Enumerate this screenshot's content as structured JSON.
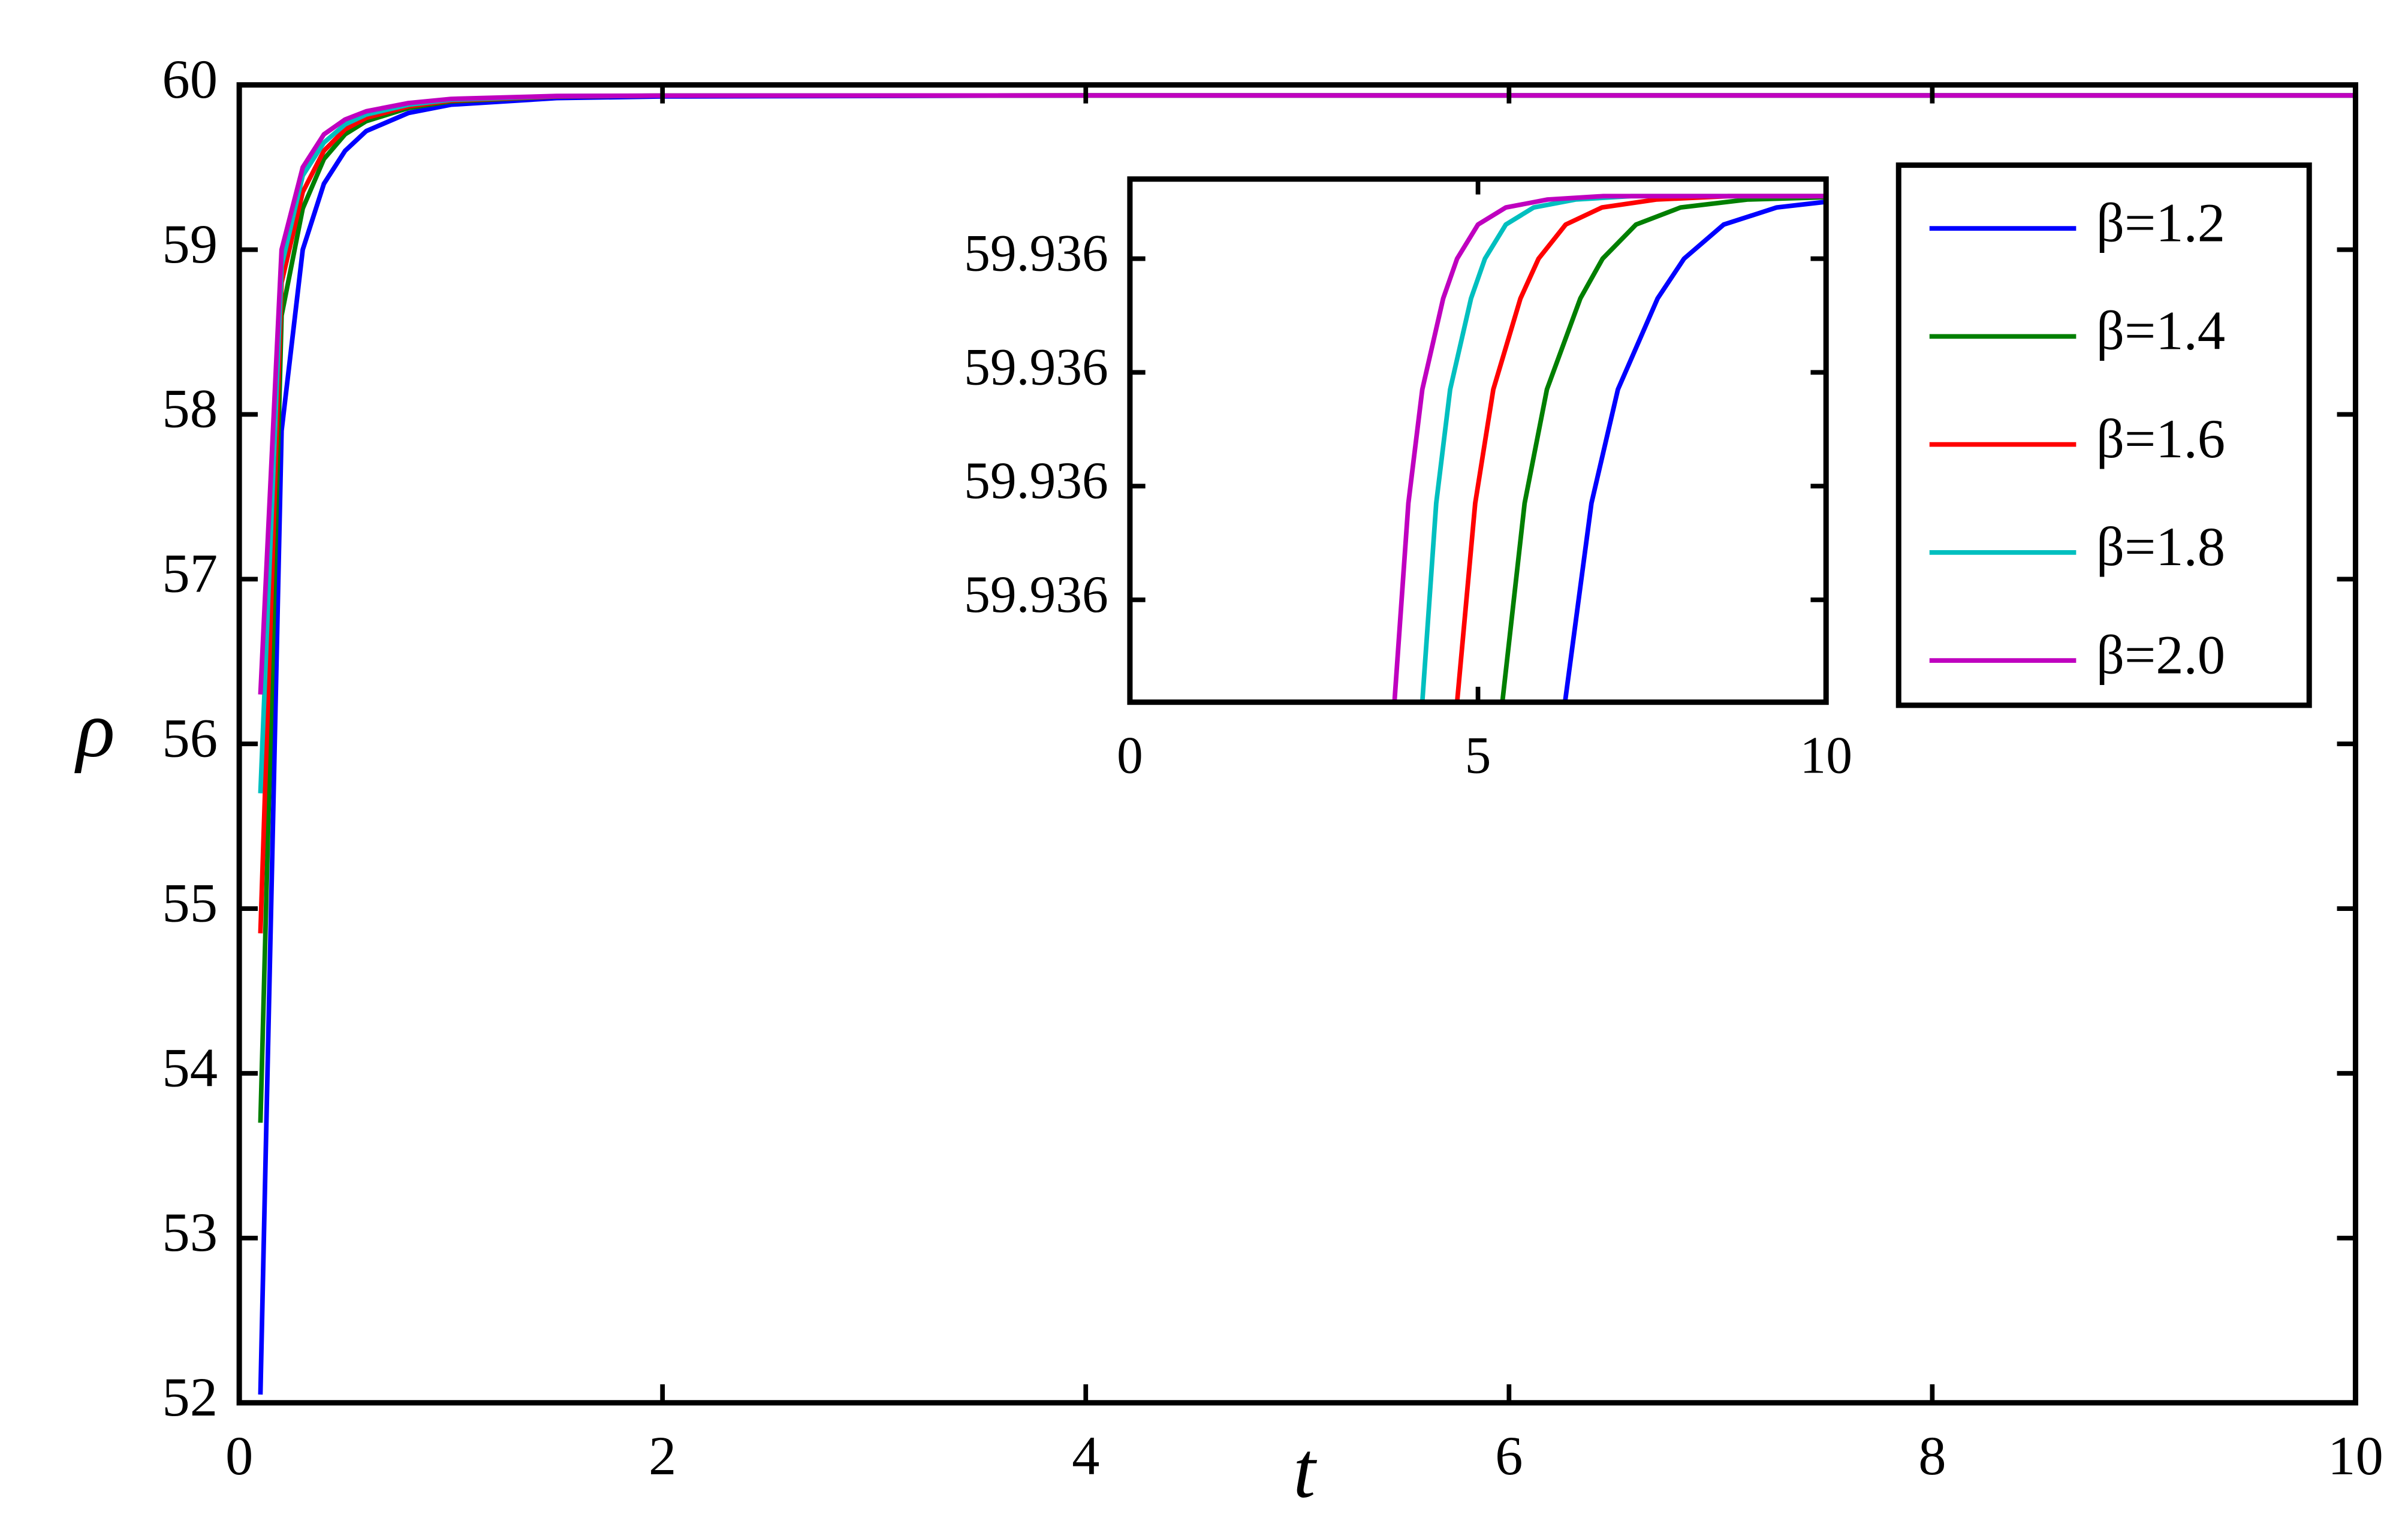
{
  "chart_data": [
    {
      "type": "line",
      "xlabel": "t",
      "ylabel": "ρ",
      "xlim": [
        0,
        10
      ],
      "ylim": [
        52,
        60
      ],
      "xticks": [
        0,
        2,
        4,
        6,
        8,
        10
      ],
      "yticks": [
        52,
        53,
        54,
        55,
        56,
        57,
        58,
        59,
        60
      ],
      "legend": "upper right",
      "x": [
        0.1,
        0.2,
        0.3,
        0.4,
        0.5,
        0.6,
        0.8,
        1.0,
        1.5,
        2,
        4,
        6,
        8,
        10
      ],
      "series": [
        {
          "name": "β=1.2",
          "color": "#0000ff",
          "values": [
            52.05,
            57.9,
            59.0,
            59.4,
            59.6,
            59.72,
            59.83,
            59.88,
            59.92,
            59.93,
            59.936,
            59.936,
            59.936,
            59.936
          ]
        },
        {
          "name": "β=1.4",
          "color": "#007f00",
          "values": [
            53.7,
            58.6,
            59.25,
            59.55,
            59.7,
            59.78,
            59.86,
            59.9,
            59.93,
            59.935,
            59.936,
            59.936,
            59.936,
            59.936
          ]
        },
        {
          "name": "β=1.6",
          "color": "#ff0000",
          "values": [
            54.85,
            58.8,
            59.35,
            59.6,
            59.73,
            59.8,
            59.87,
            59.905,
            59.93,
            59.935,
            59.936,
            59.936,
            59.936,
            59.936
          ]
        },
        {
          "name": "β=1.8",
          "color": "#00bfbf",
          "values": [
            55.7,
            58.9,
            59.45,
            59.65,
            59.76,
            59.82,
            59.88,
            59.91,
            59.932,
            59.935,
            59.936,
            59.936,
            59.936,
            59.936
          ]
        },
        {
          "name": "β=2.0",
          "color": "#bf00bf",
          "values": [
            56.3,
            59.0,
            59.5,
            59.7,
            59.79,
            59.84,
            59.89,
            59.915,
            59.933,
            59.935,
            59.936,
            59.936,
            59.936,
            59.936
          ]
        }
      ]
    },
    {
      "type": "line",
      "xlim": [
        0,
        10
      ],
      "ylim": [
        59.935961,
        59.936007
      ],
      "xticks": [
        0,
        5,
        10
      ],
      "yticks": [
        {
          "value": 59.93597,
          "label": "59.936"
        },
        {
          "value": 59.93598,
          "label": "59.936"
        },
        {
          "value": 59.93599,
          "label": "59.936"
        },
        {
          "value": 59.936,
          "label": "59.936"
        }
      ],
      "series": [
        {
          "color": "#0000ff",
          "x": [
            6.25,
            6.63,
            7.01,
            7.58,
            7.96,
            8.53,
            9.29,
            10
          ],
          "values": [
            59.935961,
            59.9359785,
            59.9359885,
            59.9359965,
            59.936,
            59.936003,
            59.9360045,
            59.936005
          ]
        },
        {
          "color": "#007f00",
          "x": [
            5.35,
            5.67,
            5.99,
            6.47,
            6.79,
            7.27,
            7.91,
            8.87,
            10
          ],
          "values": [
            59.935961,
            59.9359785,
            59.9359885,
            59.9359965,
            59.936,
            59.936003,
            59.9360045,
            59.9360052,
            59.9360054
          ]
        },
        {
          "color": "#ff0000",
          "x": [
            4.7,
            4.96,
            5.22,
            5.61,
            5.87,
            6.26,
            6.78,
            7.56,
            8.6,
            10
          ],
          "values": [
            59.935961,
            59.9359785,
            59.9359885,
            59.9359965,
            59.936,
            59.936003,
            59.9360045,
            59.9360052,
            59.9360055,
            59.9360055
          ]
        },
        {
          "color": "#00bfbf",
          "x": [
            4.2,
            4.4,
            4.6,
            4.9,
            5.1,
            5.4,
            5.8,
            6.4,
            7.2,
            10
          ],
          "values": [
            59.935961,
            59.9359785,
            59.9359885,
            59.9359965,
            59.936,
            59.936003,
            59.9360045,
            59.9360052,
            59.9360055,
            59.9360055
          ]
        },
        {
          "color": "#bf00bf",
          "x": [
            3.8,
            4.0,
            4.2,
            4.5,
            4.7,
            5.0,
            5.4,
            6.0,
            6.8,
            10
          ],
          "values": [
            59.935961,
            59.9359785,
            59.9359885,
            59.9359965,
            59.936,
            59.936003,
            59.9360045,
            59.9360052,
            59.9360055,
            59.9360055
          ]
        }
      ]
    }
  ]
}
